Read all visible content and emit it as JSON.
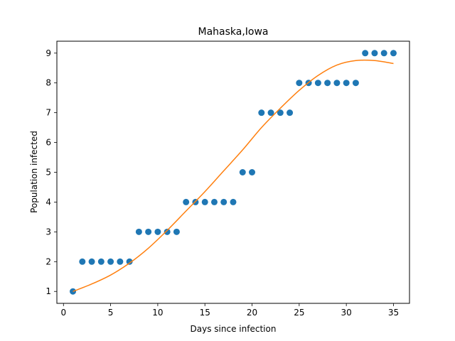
{
  "chart_data": {
    "type": "scatter",
    "title": "Mahaska,Iowa",
    "xlabel": "Days since infection",
    "ylabel": "Population infected",
    "xlim": [
      -0.7,
      36.7
    ],
    "ylim": [
      0.6,
      9.4
    ],
    "xticks": [
      0,
      5,
      10,
      15,
      20,
      25,
      30,
      35
    ],
    "yticks": [
      1,
      2,
      3,
      4,
      5,
      6,
      7,
      8,
      9
    ],
    "grid": false,
    "series": [
      {
        "kind": "scatter",
        "color": "#1f77b4",
        "x": [
          1,
          2,
          3,
          4,
          5,
          6,
          7,
          8,
          9,
          10,
          11,
          12,
          13,
          14,
          15,
          16,
          17,
          18,
          19,
          20,
          21,
          22,
          23,
          24,
          25,
          26,
          27,
          28,
          29,
          30,
          31,
          32,
          33,
          34,
          35
        ],
        "y": [
          1,
          2,
          2,
          2,
          2,
          2,
          2,
          3,
          3,
          3,
          3,
          3,
          4,
          4,
          4,
          4,
          4,
          4,
          5,
          5,
          7,
          7,
          7,
          7,
          8,
          8,
          8,
          8,
          8,
          8,
          8,
          9,
          9,
          9,
          9
        ]
      },
      {
        "kind": "line",
        "color": "#ff7f0e",
        "x": [
          1,
          3,
          5,
          7,
          9,
          11,
          13,
          15,
          17,
          19,
          21,
          23,
          25,
          27,
          29,
          31,
          33,
          35
        ],
        "y": [
          1.0,
          1.25,
          1.55,
          1.95,
          2.45,
          3.05,
          3.7,
          4.35,
          5.05,
          5.75,
          6.5,
          7.15,
          7.75,
          8.25,
          8.6,
          8.75,
          8.75,
          8.65
        ]
      }
    ]
  }
}
